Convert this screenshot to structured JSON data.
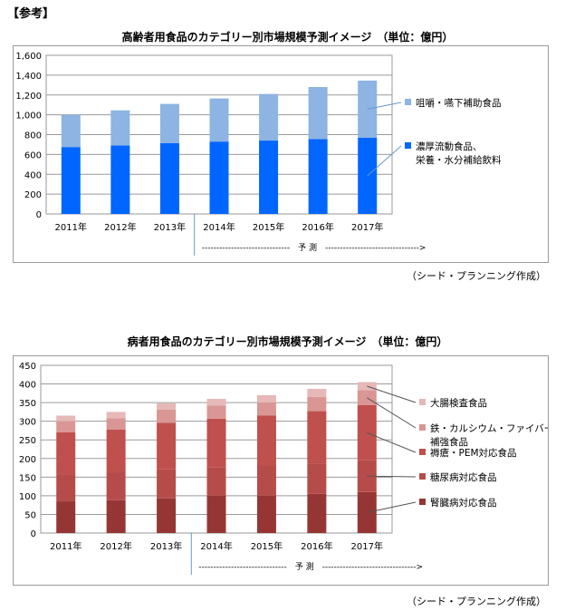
{
  "header": {
    "label": "【参考】"
  },
  "chart1": {
    "title": "高齢者用食品のカテゴリー別市場規模予測イメージ　（単位：億円）",
    "forecast_label": "------------------------------　予 測　-------------------------------->",
    "source": "（シード・プランニング作成）"
  },
  "chart2": {
    "title": "病者用食品のカテゴリー別市場規模予測イメージ　（単位：億円）",
    "forecast_label": "------------------------------　予 測　-------------------------------->",
    "source": "（シード・プランニング作成）"
  },
  "chart_data": [
    {
      "type": "bar",
      "stacked": true,
      "title": "高齢者用食品のカテゴリー別市場規模予測イメージ　（単位：億円）",
      "categories": [
        "2011年",
        "2012年",
        "2013年",
        "2014年",
        "2015年",
        "2016年",
        "2017年"
      ],
      "ylim": [
        0,
        1600
      ],
      "yticks": [
        0,
        200,
        400,
        600,
        800,
        1000,
        1200,
        1400,
        1600
      ],
      "ytick_labels": [
        "0",
        "200",
        "400",
        "600",
        "800",
        "1,000",
        "1,200",
        "1,400",
        "1,600"
      ],
      "grid": true,
      "legend_placement": "right",
      "series": [
        {
          "name": "濃厚流動食品、栄養・水分補給飲料",
          "color": "#0066ff",
          "values": [
            675,
            690,
            715,
            730,
            740,
            755,
            770
          ]
        },
        {
          "name": "咀嚼・嚥下補助食品",
          "color": "#8db4e2",
          "values": [
            325,
            355,
            395,
            435,
            470,
            525,
            575
          ]
        }
      ]
    },
    {
      "type": "bar",
      "stacked": true,
      "title": "病者用食品のカテゴリー別市場規模予測イメージ　（単位：億円）",
      "categories": [
        "2011年",
        "2012年",
        "2013年",
        "2014年",
        "2015年",
        "2016年",
        "2017年"
      ],
      "ylim": [
        0,
        450
      ],
      "yticks": [
        0,
        50,
        100,
        150,
        200,
        250,
        300,
        350,
        400,
        450
      ],
      "ytick_labels": [
        "0",
        "50",
        "100",
        "150",
        "200",
        "250",
        "300",
        "350",
        "400",
        "450"
      ],
      "grid": true,
      "legend_placement": "right",
      "series": [
        {
          "name": "腎臓病対応食品",
          "color": "#963634",
          "values": [
            85,
            88,
            93,
            100,
            100,
            105,
            110
          ]
        },
        {
          "name": "糖尿病対応食品",
          "color": "#b64c4a",
          "values": [
            72,
            75,
            78,
            77,
            80,
            82,
            85
          ]
        },
        {
          "name": "褥瘡・PEM対応食品",
          "color": "#c0504d",
          "values": [
            113,
            115,
            125,
            130,
            135,
            140,
            148
          ]
        },
        {
          "name": "鉄・カルシウム・ファイバー補強食品",
          "color": "#d99694",
          "values": [
            30,
            30,
            35,
            35,
            35,
            38,
            40
          ]
        },
        {
          "name": "大腸検査食品",
          "color": "#e6b8b7",
          "values": [
            15,
            17,
            17,
            18,
            20,
            22,
            22
          ]
        }
      ]
    }
  ]
}
